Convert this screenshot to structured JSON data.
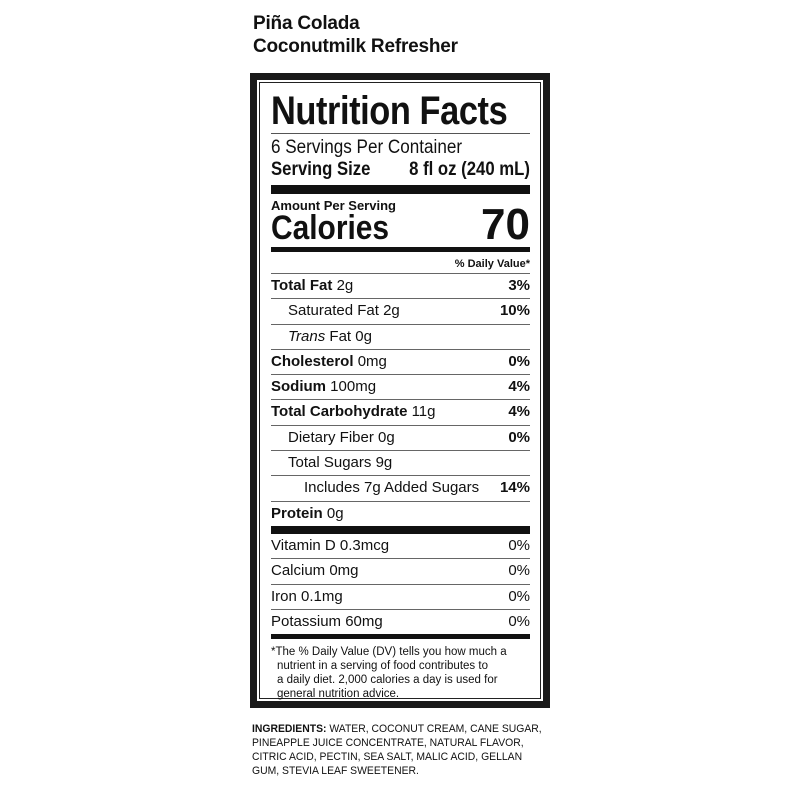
{
  "product": {
    "line1": "Piña Colada",
    "line2": "Coconutmilk Refresher"
  },
  "label": {
    "title": "Nutrition Facts",
    "servings": "6 Servings Per Container",
    "serving_size_label": "Serving Size",
    "serving_size_value": "8 fl oz (240 mL)",
    "amount_per_serving": "Amount Per Serving",
    "calories_label": "Calories",
    "calories_value": "70",
    "dv_header": "% Daily Value*",
    "nutrients": [
      {
        "name": "Total Fat",
        "amount": "2g",
        "dv": "3%",
        "bold": true,
        "indent": 0
      },
      {
        "name": "Saturated Fat",
        "amount": "2g",
        "dv": "10%",
        "bold": false,
        "indent": 1
      },
      {
        "name": "Trans",
        "amount": "Fat 0g",
        "dv": "",
        "bold": false,
        "indent": 1
      },
      {
        "name": "Cholesterol",
        "amount": "0mg",
        "dv": "0%",
        "bold": true,
        "indent": 0
      },
      {
        "name": "Sodium",
        "amount": "100mg",
        "dv": "4%",
        "bold": true,
        "indent": 0
      },
      {
        "name": "Total Carbohydrate",
        "amount": "11g",
        "dv": "4%",
        "bold": true,
        "indent": 0
      },
      {
        "name": "Dietary Fiber",
        "amount": "0g",
        "dv": "0%",
        "bold": false,
        "indent": 1
      },
      {
        "name": "Total Sugars",
        "amount": "9g",
        "dv": "",
        "bold": false,
        "indent": 1
      },
      {
        "name": "Includes 7g Added Sugars",
        "amount": "",
        "dv": "14%",
        "bold": false,
        "indent": 2
      },
      {
        "name": "Protein",
        "amount": "0g",
        "dv": "",
        "bold": true,
        "indent": 0
      }
    ],
    "vitamins": [
      {
        "name": "Vitamin D 0.3mcg",
        "dv": "0%"
      },
      {
        "name": "Calcium 0mg",
        "dv": "0%"
      },
      {
        "name": "Iron 0.1mg",
        "dv": "0%"
      },
      {
        "name": "Potassium 60mg",
        "dv": "0%"
      }
    ],
    "footnote_1": "*The % Daily Value (DV) tells you how much a",
    "footnote_2": "nutrient in a serving of food contributes to",
    "footnote_3": "a daily diet. 2,000 calories a day is used for",
    "footnote_4": "general nutrition advice."
  },
  "ingredients": {
    "label": "INGREDIENTS:",
    "text": " WATER, COCONUT CREAM, CANE SUGAR, PINEAPPLE JUICE CONCENTRATE, NATURAL FLAVOR, CITRIC ACID, PECTIN, SEA SALT, MALIC ACID, GELLAN GUM, STEVIA LEAF SWEETENER."
  }
}
